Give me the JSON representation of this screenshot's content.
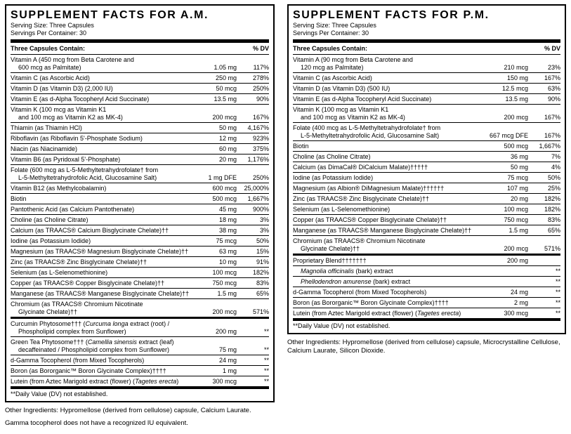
{
  "page": {
    "background_color": "#ffffff",
    "text_color": "#000000",
    "rule_color": "#000000"
  },
  "panels": [
    {
      "id": "am",
      "title": "SUPPLEMENT FACTS FOR A.M.",
      "serving_size": "Serving Size: Three Capsules",
      "servings_per_container": "Servings Per Container: 30",
      "columns": {
        "contain": "Three Capsules Contain:",
        "dv": "% DV"
      },
      "rows": [
        {
          "lines": [
            "Vitamin A (450 mcg from Beta Carotene and",
            "600 mcg as Palmitate)"
          ],
          "amount": "1.05 mg",
          "dv": "117%"
        },
        {
          "lines": [
            "Vitamin C (as Ascorbic Acid)"
          ],
          "amount": "250 mg",
          "dv": "278%"
        },
        {
          "lines": [
            "Vitamin D (as Vitamin D3) (2,000 IU)"
          ],
          "amount": "50 mcg",
          "dv": "250%"
        },
        {
          "lines": [
            "Vitamin E (as d-Alpha Tocopheryl Acid Succinate)"
          ],
          "amount": "13.5 mg",
          "dv": "90%"
        },
        {
          "lines": [
            "Vitamin K (100 mcg as Vitamin K1",
            "and 100 mcg as Vitamin K2 as MK-4)"
          ],
          "amount": "200 mcg",
          "dv": "167%"
        },
        {
          "lines": [
            "Thiamin (as Thiamin HCl)"
          ],
          "amount": "50 mg",
          "dv": "4,167%"
        },
        {
          "lines": [
            "Riboflavin (as Riboflavin 5'-Phosphate Sodium)"
          ],
          "amount": "12 mg",
          "dv": "923%"
        },
        {
          "lines": [
            "Niacin (as Niacinamide)"
          ],
          "amount": "60 mg",
          "dv": "375%"
        },
        {
          "lines": [
            "Vitamin B6 (as Pyridoxal 5'-Phosphate)"
          ],
          "amount": "20 mg",
          "dv": "1,176%"
        },
        {
          "lines": [
            "Folate (600 mcg as L-5-Methyltetrahydrofolate† from",
            "L-5-Methyltetrahydrofolic Acid, Glucosamine Salt)"
          ],
          "amount": "1 mg DFE",
          "dv": "250%"
        },
        {
          "lines": [
            "Vitamin B12 (as Methylcobalamin)"
          ],
          "amount": "600 mcg",
          "dv": "25,000%"
        },
        {
          "lines": [
            "Biotin"
          ],
          "amount": "500 mcg",
          "dv": "1,667%"
        },
        {
          "lines": [
            "Pantothenic Acid (as Calcium Pantothenate)"
          ],
          "amount": "45 mg",
          "dv": "900%"
        },
        {
          "lines": [
            "Choline (as Choline Citrate)"
          ],
          "amount": "18 mg",
          "dv": "3%"
        },
        {
          "lines": [
            "Calcium (as TRAACS® Calcium Bisglycinate Chelate)††"
          ],
          "amount": "38 mg",
          "dv": "3%"
        },
        {
          "lines": [
            "Iodine (as Potassium Iodide)"
          ],
          "amount": "75 mcg",
          "dv": "50%"
        },
        {
          "lines": [
            "Magnesium (as TRAACS® Magnesium Bisglycinate Chelate)††"
          ],
          "amount": "63 mg",
          "dv": "15%"
        },
        {
          "lines": [
            "Zinc (as TRAACS® Zinc Bisglycinate Chelate)††"
          ],
          "amount": "10 mg",
          "dv": "91%"
        },
        {
          "lines": [
            "Selenium (as L-Selenomethionine)"
          ],
          "amount": "100 mcg",
          "dv": "182%"
        },
        {
          "lines": [
            "Copper (as TRAACS® Copper Bisglycinate Chelate)††"
          ],
          "amount": "750 mcg",
          "dv": "83%"
        },
        {
          "lines": [
            "Manganese (as TRAACS® Manganese Bisglycinate Chelate)††"
          ],
          "amount": "1.5 mg",
          "dv": "65%"
        },
        {
          "lines": [
            "Chromium (as TRAACS® Chromium Nicotinate",
            "Glycinate Chelate)††"
          ],
          "amount": "200 mcg",
          "dv": "571%"
        },
        {
          "sep": "thick",
          "lines": [
            "Curcumin Phytosome††† (_Curcuma longa_ extract (root) /",
            "Phospholipid complex from Sunflower)"
          ],
          "amount": "200 mg",
          "dv": "**"
        },
        {
          "lines": [
            "Green Tea Phytosome††† (_Camellia sinensis_ extract (leaf)",
            "decaffeinated / Phospholipid complex from Sunflower)"
          ],
          "amount": "75 mg",
          "dv": "**"
        },
        {
          "lines": [
            "d-Gamma Tocopherol (from Mixed Tocopherols)"
          ],
          "amount": "24 mg",
          "dv": "**"
        },
        {
          "lines": [
            "Boron (as Bororganic™ Boron Glycinate Complex)††††"
          ],
          "amount": "1 mg",
          "dv": "**"
        },
        {
          "lines": [
            "Lutein (from Aztec Marigold extract (flower) (_Tagetes erecta_)"
          ],
          "amount": "300 mcg",
          "dv": "**"
        }
      ],
      "footnote": "**Daily Value (DV) not established.",
      "other_ingredients": "Other Ingredients: Hypromellose (derived from cellulose) capsule, Calcium Laurate.",
      "extra_note": "Gamma tocopherol does not have a recognized IU equivalent."
    },
    {
      "id": "pm",
      "title": "SUPPLEMENT FACTS FOR P.M.",
      "serving_size": "Serving Size: Three Capsules",
      "servings_per_container": "Servings Per Container: 30",
      "columns": {
        "contain": "Three Capsules Contain:",
        "dv": "% DV"
      },
      "rows": [
        {
          "lines": [
            "Vitamin A (90 mcg from Beta Carotene and",
            "120 mcg as Palmitate)"
          ],
          "amount": "210 mcg",
          "dv": "23%"
        },
        {
          "lines": [
            "Vitamin C (as Ascorbic Acid)"
          ],
          "amount": "150 mg",
          "dv": "167%"
        },
        {
          "lines": [
            "Vitamin D (as Vitamin D3) (500 IU)"
          ],
          "amount": "12.5 mcg",
          "dv": "63%"
        },
        {
          "lines": [
            "Vitamin E (as d-Alpha Tocopheryl Acid Succinate)"
          ],
          "amount": "13.5 mg",
          "dv": "90%"
        },
        {
          "lines": [
            "Vitamin K (100 mcg as Vitamin K1",
            "and 100 mcg as Vitamin K2 as MK-4)"
          ],
          "amount": "200 mcg",
          "dv": "167%"
        },
        {
          "lines": [
            "Folate (400 mcg as L-5-Methyltetrahydrofolate† from",
            "L-5-Methyltetrahydrofolic Acid, Glucosamine Salt)"
          ],
          "amount": "667 mcg DFE",
          "dv": "167%"
        },
        {
          "lines": [
            "Biotin"
          ],
          "amount": "500 mcg",
          "dv": "1,667%"
        },
        {
          "lines": [
            "Choline (as Choline Citrate)"
          ],
          "amount": "36 mg",
          "dv": "7%"
        },
        {
          "lines": [
            "Calcium (as DimaCal® DiCalcium Malate)†††††"
          ],
          "amount": "50 mg",
          "dv": "4%"
        },
        {
          "lines": [
            "Iodine (as Potassium Iodide)"
          ],
          "amount": "75 mcg",
          "dv": "50%"
        },
        {
          "lines": [
            "Magnesium (as Albion® DiMagnesium Malate)††††††"
          ],
          "amount": "107 mg",
          "dv": "25%"
        },
        {
          "lines": [
            "Zinc (as TRAACS® Zinc Bisglycinate Chelate)††"
          ],
          "amount": "20 mg",
          "dv": "182%"
        },
        {
          "lines": [
            "Selenium (as L-Selenomethionine)"
          ],
          "amount": "100 mcg",
          "dv": "182%"
        },
        {
          "lines": [
            "Copper (as TRAACS® Copper Bisglycinate Chelate)††"
          ],
          "amount": "750 mcg",
          "dv": "83%"
        },
        {
          "lines": [
            "Manganese (as TRAACS® Manganese Bisglycinate Chelate)††"
          ],
          "amount": "1.5 mg",
          "dv": "65%"
        },
        {
          "lines": [
            "Chromium (as TRAACS® Chromium Nicotinate",
            "Glycinate Chelate)††"
          ],
          "amount": "200 mcg",
          "dv": "571%"
        },
        {
          "sep": "thick",
          "lines": [
            "Proprietary Blend†††††††"
          ],
          "amount": "200 mg",
          "dv": ""
        },
        {
          "sub": true,
          "lines": [
            "_Magnolia officinalis_ (bark) extract"
          ],
          "amount": "",
          "dv": "**"
        },
        {
          "sub": true,
          "lines": [
            "_Phellodendron amurense_ (bark) extract"
          ],
          "amount": "",
          "dv": "**"
        },
        {
          "lines": [
            "d-Gamma Tocopherol (from Mixed Tocopherols)"
          ],
          "amount": "24 mg",
          "dv": "**"
        },
        {
          "lines": [
            "Boron (as Bororganic™ Boron Glycinate Complex)††††"
          ],
          "amount": "2 mg",
          "dv": "**"
        },
        {
          "lines": [
            "Lutein (from Aztec Marigold extract (flower) (_Tagetes erecta_)"
          ],
          "amount": "300 mcg",
          "dv": "**"
        }
      ],
      "footnote": "**Daily Value (DV) not established.",
      "other_ingredients": "Other Ingredients: Hypromellose (derived from cellulose) capsule, Microcrystalline Cellulose, Calcium Laurate, Silicon Dioxide.",
      "extra_note": ""
    }
  ]
}
